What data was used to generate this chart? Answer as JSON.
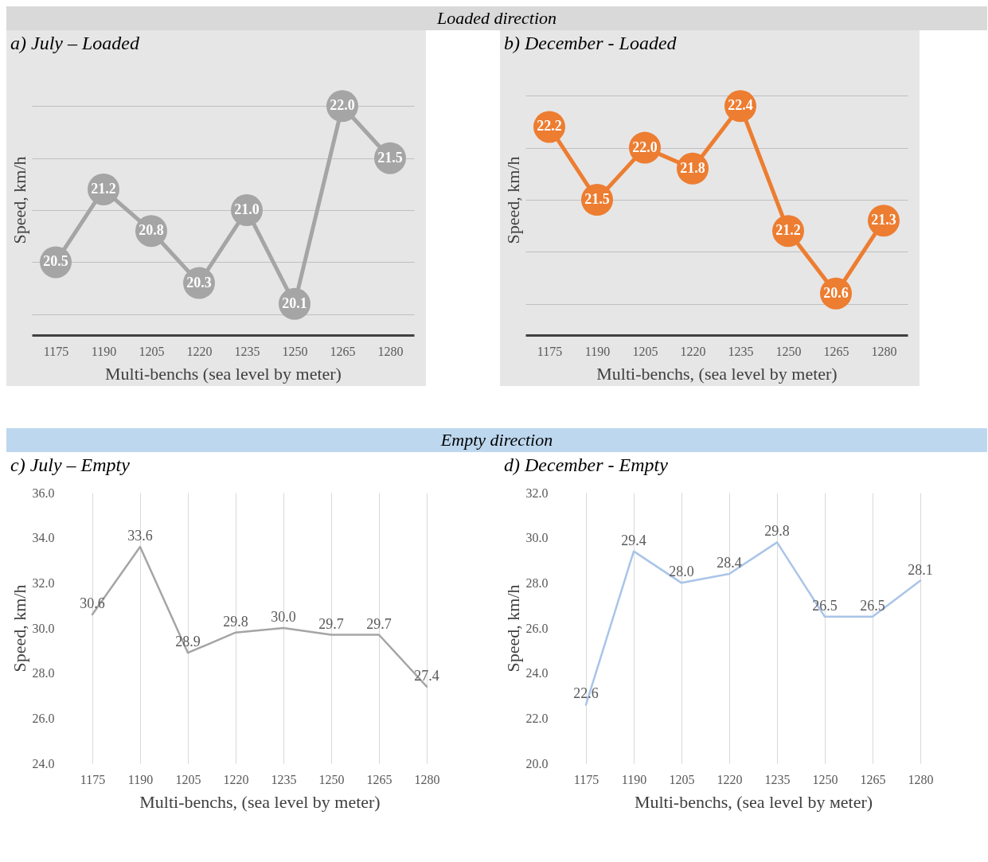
{
  "chart_data": [
    {
      "type": "line",
      "title": "a)   July – Loaded",
      "annotations": [
        "Loaded direction"
      ],
      "xlabel": "Multi-benchs (sea level by meter)",
      "ylabel": "Speed, km/h",
      "categories": [
        "1175",
        "1190",
        "1205",
        "1220",
        "1235",
        "1250",
        "1265",
        "1280"
      ],
      "series": [
        {
          "color": "#a5a5a5",
          "values": [
            20.5,
            21.2,
            20.8,
            20.3,
            21.0,
            20.1,
            22.0,
            21.5
          ],
          "value_labels": [
            "20.5",
            "21.2",
            "20.8",
            "20.3",
            "21.0",
            "20.1",
            "22.0",
            "21.5"
          ]
        }
      ],
      "tick_labels": "x",
      "grid": "y",
      "marker": "circle"
    },
    {
      "type": "line",
      "title": "b)   December - Loaded",
      "xlabel": "Multi-benchs, (sea level by meter)",
      "ylabel": "Speed, km/h",
      "categories": [
        "1175",
        "1190",
        "1205",
        "1220",
        "1235",
        "1250",
        "1265",
        "1280"
      ],
      "series": [
        {
          "color": "#ed7d31",
          "values": [
            22.2,
            21.5,
            22.0,
            21.8,
            22.4,
            21.2,
            20.6,
            21.3
          ],
          "value_labels": [
            "22.2",
            "21.5",
            "22.0",
            "21.8",
            "22.4",
            "21.2",
            "20.6",
            "21.3"
          ]
        }
      ],
      "tick_labels": "x",
      "grid": "y",
      "marker": "circle"
    },
    {
      "type": "line",
      "title": "c) July – Empty",
      "annotations": [
        "Empty direction"
      ],
      "xlabel": "Multi-benchs, (sea level by meter)",
      "ylabel": "Speed, km/h",
      "categories": [
        "1175",
        "1190",
        "1205",
        "1220",
        "1235",
        "1250",
        "1265",
        "1280"
      ],
      "series": [
        {
          "color": "#a5a5a5",
          "values": [
            30.6,
            33.6,
            28.9,
            29.8,
            30.0,
            29.7,
            29.7,
            27.4
          ],
          "value_labels": [
            "30.6",
            "33.6",
            "28.9",
            "29.8",
            "30.0",
            "29.7",
            "29.7",
            "27.4"
          ]
        }
      ],
      "ylim": [
        24,
        36
      ],
      "yticks": [
        {
          "value": 24,
          "label": "24.0"
        },
        {
          "value": 26,
          "label": "26.0"
        },
        {
          "value": 28,
          "label": "28.0"
        },
        {
          "value": 30,
          "label": "30.0"
        },
        {
          "value": 32,
          "label": "32.0"
        },
        {
          "value": 34,
          "label": "34.0"
        },
        {
          "value": 36,
          "label": "36.0"
        }
      ],
      "grid": "x",
      "marker": "none"
    },
    {
      "type": "line",
      "title": "d) December - Empty",
      "xlabel": "Multi-benchs, (sea level by мeter)",
      "ylabel": "Speed, km/h",
      "categories": [
        "1175",
        "1190",
        "1205",
        "1220",
        "1235",
        "1250",
        "1265",
        "1280"
      ],
      "series": [
        {
          "color": "#a9c4e8",
          "values": [
            22.6,
            29.4,
            28.0,
            28.4,
            29.8,
            26.5,
            26.5,
            28.1
          ],
          "value_labels": [
            "22.6",
            "29.4",
            "28.0",
            "28.4",
            "29.8",
            "26.5",
            "26.5",
            "28.1"
          ]
        }
      ],
      "ylim": [
        20,
        32
      ],
      "yticks": [
        {
          "value": 20,
          "label": "20.0"
        },
        {
          "value": 22,
          "label": "22.0"
        },
        {
          "value": 24,
          "label": "24.0"
        },
        {
          "value": 26,
          "label": "26.0"
        },
        {
          "value": 28,
          "label": "28.0"
        },
        {
          "value": 30,
          "label": "30.0"
        },
        {
          "value": 32,
          "label": "32.0"
        }
      ],
      "grid": "x",
      "marker": "none"
    }
  ]
}
